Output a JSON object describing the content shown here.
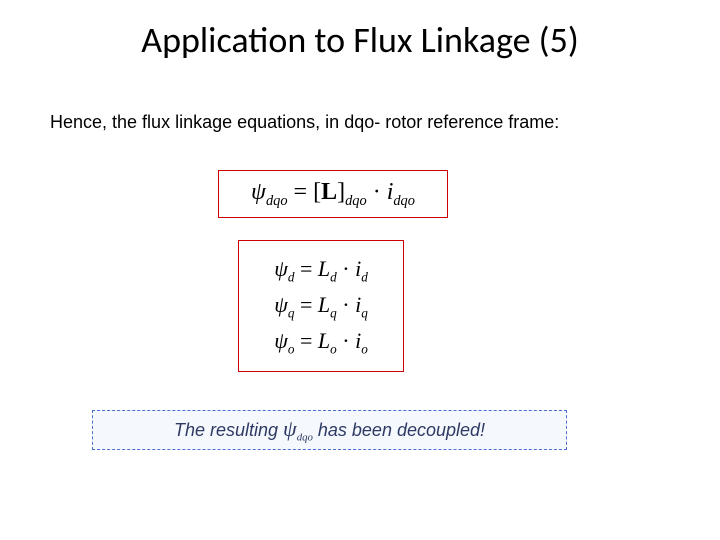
{
  "slide": {
    "title": "Application to Flux Linkage (5)",
    "intro": "Hence, the flux linkage equations, in dqo- rotor reference frame:",
    "colors": {
      "title_color": "#000000",
      "intro_color": "#000000",
      "eq_border": "#cc0000",
      "footer_border": "#4a6fcf",
      "footer_bg": "#f5f9fe",
      "footer_text": "#2e3a63",
      "background": "#ffffff"
    },
    "eq1": {
      "psi_sym": "ψ",
      "psi_sub": "dqo",
      "eq_sign": " = ",
      "lhs_open": "[",
      "mat_sym": "L",
      "lhs_close": "]",
      "mat_sub": "dqo",
      "dot": " · ",
      "i_sym": "i",
      "i_sub": "dqo",
      "fontsize": 24
    },
    "eq2": {
      "lines": [
        {
          "psi": "ψ",
          "psub": "d",
          "eq": " = ",
          "L": "L",
          "Lsub": "d",
          "dot": " · ",
          "i": "i",
          "isub": "d"
        },
        {
          "psi": "ψ",
          "psub": "q",
          "eq": " = ",
          "L": "L",
          "Lsub": "q",
          "dot": " · ",
          "i": "i",
          "isub": "q"
        },
        {
          "psi": "ψ",
          "psub": "o",
          "eq": " = ",
          "L": "L",
          "Lsub": "o",
          "dot": " · ",
          "i": "i",
          "isub": "o"
        }
      ],
      "fontsize": 22
    },
    "footer": {
      "pre": "The resulting ",
      "psi": "ψ",
      "psi_sub": "dqo",
      "post": " has been decoupled!",
      "fontsize": 18
    }
  }
}
